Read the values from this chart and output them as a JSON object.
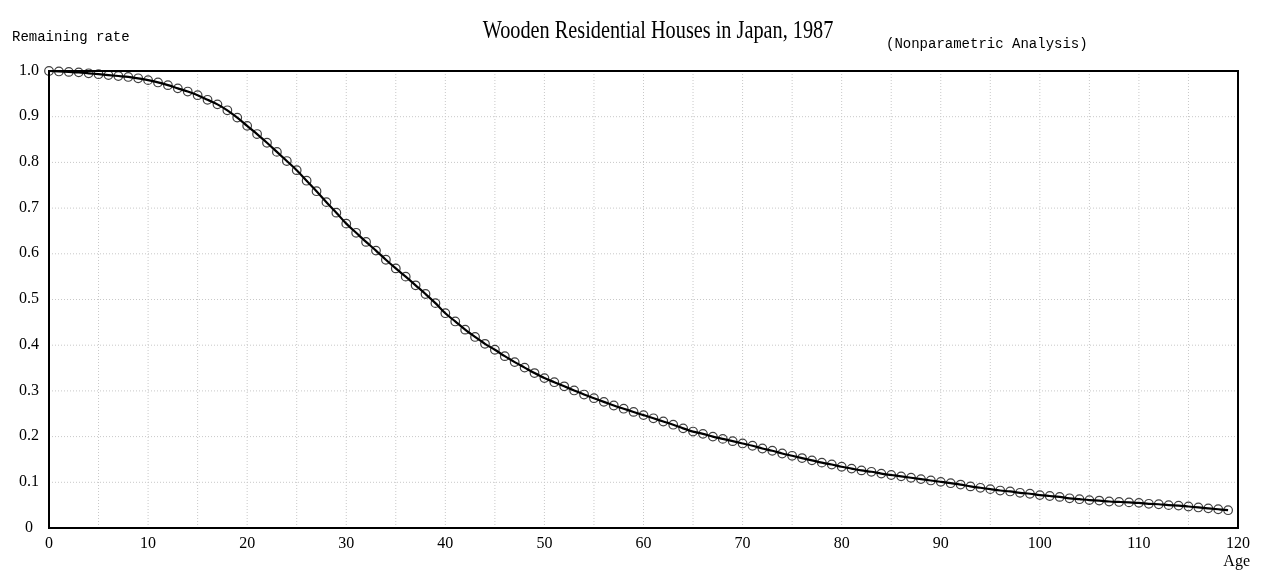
{
  "chart_data": {
    "type": "line",
    "title": "Wooden Residential Houses in Japan, 1987",
    "subtitle": "(Nonparametric Analysis)",
    "xlabel": "Age",
    "ylabel": "Remaining rate",
    "x": [
      0,
      1,
      2,
      3,
      4,
      5,
      6,
      7,
      8,
      9,
      10,
      11,
      12,
      13,
      14,
      15,
      16,
      17,
      18,
      19,
      20,
      21,
      22,
      23,
      24,
      25,
      26,
      27,
      28,
      29,
      30,
      31,
      32,
      33,
      34,
      35,
      36,
      37,
      38,
      39,
      40,
      41,
      42,
      43,
      44,
      45,
      46,
      47,
      48,
      49,
      50,
      51,
      52,
      53,
      54,
      55,
      56,
      57,
      58,
      59,
      60,
      61,
      62,
      63,
      64,
      65,
      66,
      67,
      68,
      69,
      70,
      71,
      72,
      73,
      74,
      75,
      76,
      77,
      78,
      79,
      80,
      81,
      82,
      83,
      84,
      85,
      86,
      87,
      88,
      89,
      90,
      91,
      92,
      93,
      94,
      95,
      96,
      97,
      98,
      99,
      100,
      101,
      102,
      103,
      104,
      105,
      106,
      107,
      108,
      109,
      110,
      111,
      112,
      113,
      114,
      115,
      116,
      117,
      118,
      119
    ],
    "series": [
      {
        "color": "#000000",
        "values": [
          1.0,
          0.999,
          0.998,
          0.997,
          0.995,
          0.993,
          0.991,
          0.989,
          0.987,
          0.984,
          0.98,
          0.975,
          0.969,
          0.962,
          0.955,
          0.947,
          0.937,
          0.927,
          0.914,
          0.898,
          0.88,
          0.862,
          0.843,
          0.823,
          0.803,
          0.783,
          0.76,
          0.737,
          0.713,
          0.69,
          0.666,
          0.646,
          0.626,
          0.607,
          0.587,
          0.568,
          0.55,
          0.531,
          0.512,
          0.492,
          0.47,
          0.452,
          0.434,
          0.418,
          0.403,
          0.39,
          0.376,
          0.363,
          0.351,
          0.339,
          0.328,
          0.319,
          0.31,
          0.301,
          0.292,
          0.284,
          0.276,
          0.268,
          0.261,
          0.254,
          0.247,
          0.24,
          0.233,
          0.226,
          0.218,
          0.211,
          0.206,
          0.2,
          0.195,
          0.19,
          0.185,
          0.18,
          0.174,
          0.169,
          0.163,
          0.158,
          0.153,
          0.148,
          0.143,
          0.139,
          0.134,
          0.13,
          0.126,
          0.123,
          0.119,
          0.116,
          0.113,
          0.11,
          0.107,
          0.104,
          0.101,
          0.098,
          0.095,
          0.091,
          0.088,
          0.085,
          0.082,
          0.08,
          0.077,
          0.075,
          0.072,
          0.07,
          0.068,
          0.065,
          0.063,
          0.061,
          0.06,
          0.058,
          0.057,
          0.056,
          0.055,
          0.053,
          0.052,
          0.05,
          0.049,
          0.047,
          0.045,
          0.043,
          0.041,
          0.039
        ]
      }
    ],
    "xlim": [
      0,
      120
    ],
    "ylim": [
      0,
      1
    ],
    "xticks": [
      0,
      {
        "value": 5,
        "label": null
      },
      10,
      {
        "value": 15,
        "label": null
      },
      20,
      {
        "value": 25,
        "label": null
      },
      30,
      {
        "value": 35,
        "label": null
      },
      40,
      {
        "value": 45,
        "label": null
      },
      50,
      {
        "value": 55,
        "label": null
      },
      60,
      {
        "value": 65,
        "label": null
      },
      70,
      {
        "value": 75,
        "label": null
      },
      80,
      {
        "value": 85,
        "label": null
      },
      90,
      {
        "value": 95,
        "label": null
      },
      100,
      {
        "value": 105,
        "label": null
      },
      110,
      {
        "value": 115,
        "label": null
      },
      120
    ],
    "yticks": [
      0,
      0.1,
      0.2,
      0.3,
      0.4,
      0.5,
      0.6,
      0.7,
      0.8,
      0.9,
      {
        "value": 1,
        "label": "1.0"
      }
    ],
    "grid": true,
    "marker": "circle",
    "line_style": "solid"
  }
}
